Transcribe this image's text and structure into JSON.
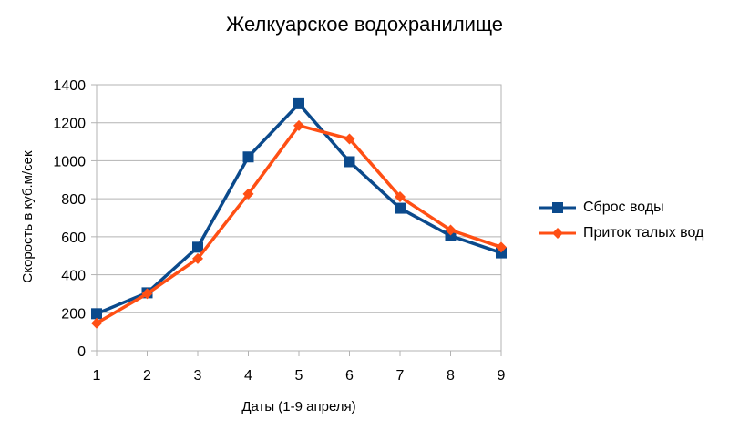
{
  "chart_data": {
    "type": "line",
    "title": "Желкуарское водохранилище",
    "xlabel": "Даты (1-9 апреля)",
    "ylabel": "Скорость в куб.м/сек",
    "x": [
      1,
      2,
      3,
      4,
      5,
      6,
      7,
      8,
      9
    ],
    "ylim": [
      0,
      1400
    ],
    "yticks": [
      0,
      200,
      400,
      600,
      800,
      1000,
      1200,
      1400
    ],
    "grid": true,
    "legend_position": "right",
    "series": [
      {
        "name": "Сброс воды",
        "color": "#0b4a8c",
        "marker": "square",
        "values": [
          195,
          305,
          545,
          1020,
          1300,
          995,
          750,
          605,
          515
        ]
      },
      {
        "name": "Приток талых вод",
        "color": "#ff4f14",
        "marker": "diamond",
        "values": [
          145,
          300,
          485,
          825,
          1185,
          1115,
          810,
          635,
          545
        ]
      }
    ]
  }
}
